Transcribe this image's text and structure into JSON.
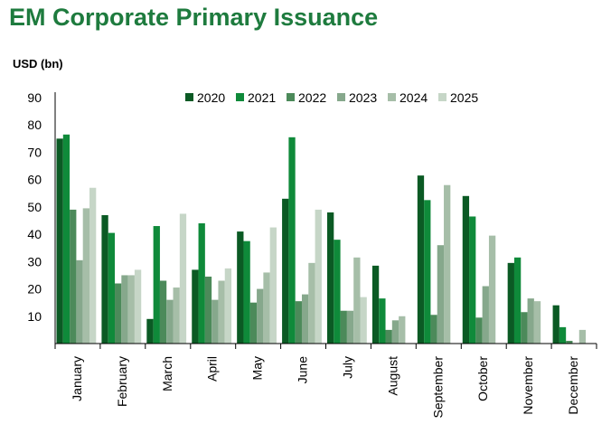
{
  "chart_data": {
    "type": "bar",
    "title": "EM Corporate Primary Issuance",
    "ylabel": "USD (bn)",
    "xlabel": "",
    "ylim": [
      0,
      90
    ],
    "yticks": [
      10,
      20,
      30,
      40,
      50,
      60,
      70,
      80,
      90
    ],
    "grid": false,
    "legend_position": "top",
    "categories": [
      "January",
      "February",
      "March",
      "April",
      "May",
      "June",
      "July",
      "August",
      "September",
      "October",
      "November",
      "December"
    ],
    "series": [
      {
        "name": "2020",
        "color": "#0b5a24",
        "values": [
          75,
          47,
          9,
          27,
          41,
          53,
          48,
          28.5,
          61.5,
          54,
          29.5,
          14
        ]
      },
      {
        "name": "2021",
        "color": "#0f8a3a",
        "values": [
          76.5,
          40.5,
          43,
          44,
          37.5,
          75.5,
          38,
          16.5,
          52.5,
          46.5,
          31.5,
          6
        ]
      },
      {
        "name": "2022",
        "color": "#4c8a5a",
        "values": [
          49,
          22,
          23,
          24.5,
          15,
          15.5,
          12,
          5,
          10.5,
          9.5,
          11.5,
          1
        ]
      },
      {
        "name": "2023",
        "color": "#86a88c",
        "values": [
          30.5,
          25,
          16,
          16,
          20,
          18,
          12,
          8.5,
          36,
          21,
          16.5,
          0
        ]
      },
      {
        "name": "2024",
        "color": "#a6bea8",
        "values": [
          49.5,
          25,
          20.5,
          23,
          26,
          29.5,
          31.5,
          10,
          58,
          39.5,
          15.5,
          5
        ]
      },
      {
        "name": "2025",
        "color": "#c6d6c7",
        "values": [
          57,
          27,
          47.5,
          27.5,
          42.5,
          49,
          17,
          null,
          null,
          null,
          null,
          null
        ]
      }
    ]
  }
}
